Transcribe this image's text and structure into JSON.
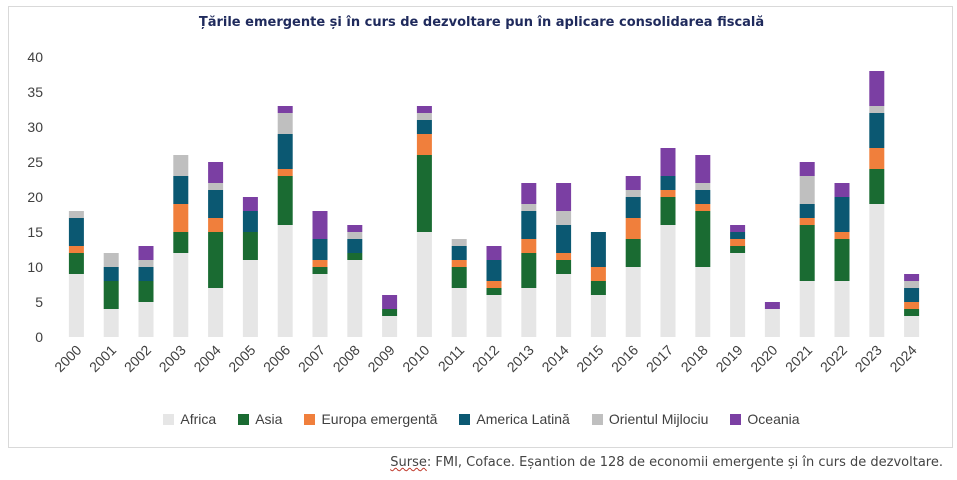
{
  "title": "Țările emergente și în curs de dezvoltare pun în aplicare consolidarea fiscală",
  "source_prefix": "Surse",
  "source_rest": ": FMI, Coface. Eșantion de 128 de economii emergente și în curs de dezvoltare.",
  "chart_data": {
    "type": "bar",
    "stacked": true,
    "categories": [
      "2000",
      "2001",
      "2002",
      "2003",
      "2004",
      "2005",
      "2006",
      "2007",
      "2008",
      "2009",
      "2010",
      "2011",
      "2012",
      "2013",
      "2014",
      "2015",
      "2016",
      "2017",
      "2018",
      "2019",
      "2020",
      "2021",
      "2022",
      "2023",
      "2024"
    ],
    "ylim": [
      0,
      40
    ],
    "yticks": [
      0,
      5,
      10,
      15,
      20,
      25,
      30,
      35,
      40
    ],
    "grid": false,
    "legend_position": "bottom",
    "series": [
      {
        "name": "Africa",
        "color": "#e6e6e6",
        "values": [
          9,
          4,
          5,
          12,
          7,
          11,
          16,
          9,
          11,
          3,
          15,
          7,
          6,
          7,
          9,
          6,
          10,
          16,
          10,
          12,
          4,
          8,
          8,
          19,
          3
        ]
      },
      {
        "name": "Asia",
        "color": "#1a6b32",
        "values": [
          3,
          4,
          3,
          3,
          8,
          4,
          7,
          1,
          1,
          1,
          11,
          3,
          1,
          5,
          2,
          2,
          4,
          4,
          8,
          1,
          0,
          8,
          6,
          5,
          1
        ]
      },
      {
        "name": "Europa emergentă",
        "color": "#f07f3c",
        "values": [
          1,
          0,
          0,
          4,
          2,
          0,
          1,
          1,
          0,
          0,
          3,
          1,
          1,
          2,
          1,
          2,
          3,
          1,
          1,
          1,
          0,
          1,
          1,
          3,
          1
        ]
      },
      {
        "name": "America Latină",
        "color": "#0b5872",
        "values": [
          4,
          2,
          2,
          4,
          4,
          3,
          5,
          3,
          2,
          0,
          2,
          2,
          3,
          4,
          4,
          5,
          3,
          2,
          2,
          1,
          0,
          2,
          5,
          5,
          2
        ]
      },
      {
        "name": "Orientul Mijlociu",
        "color": "#bfbfbf",
        "values": [
          1,
          2,
          1,
          3,
          1,
          0,
          3,
          0,
          1,
          0,
          1,
          1,
          0,
          1,
          2,
          0,
          1,
          0,
          1,
          0,
          0,
          4,
          0,
          1,
          1
        ]
      },
      {
        "name": "Oceania",
        "color": "#7b3fa3",
        "values": [
          0,
          0,
          2,
          0,
          3,
          2,
          1,
          4,
          1,
          2,
          1,
          0,
          2,
          3,
          4,
          0,
          2,
          4,
          4,
          1,
          1,
          2,
          2,
          5,
          1
        ]
      }
    ]
  }
}
